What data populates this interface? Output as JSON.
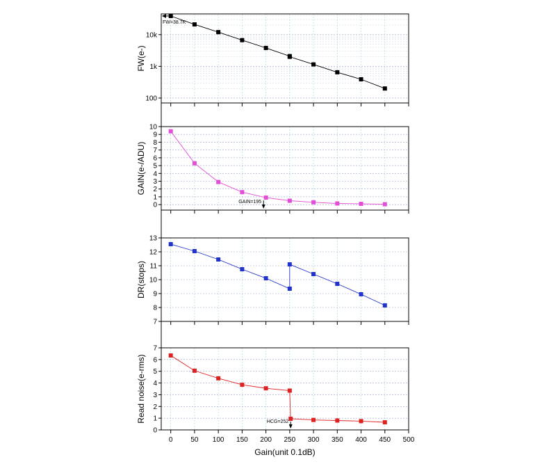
{
  "chart_data": [
    {
      "id": "fw",
      "type": "line",
      "ylabel": "FW(e-)",
      "yscale": "log",
      "ylim": [
        70,
        45000
      ],
      "yticks": [
        100,
        1000,
        10000
      ],
      "ytick_labels": [
        "100",
        "1k",
        "10k"
      ],
      "xlim": [
        -20,
        500
      ],
      "grid": true,
      "color": "#000000",
      "x": [
        0,
        50,
        100,
        150,
        200,
        250,
        250,
        300,
        350,
        400,
        450
      ],
      "values": [
        38700,
        21000,
        12000,
        6700,
        3800,
        2100,
        2000,
        1150,
        650,
        390,
        200
      ],
      "annotations": [
        {
          "text": "FW=38.7K",
          "x": 0,
          "y": 38700,
          "arrow": "left"
        }
      ]
    },
    {
      "id": "gain",
      "type": "line",
      "ylabel": "GAIN(e-/ADU)",
      "yscale": "linear",
      "ylim": [
        -0.7,
        10
      ],
      "yticks": [
        0,
        1,
        2,
        3,
        4,
        5,
        6,
        7,
        8,
        9,
        10
      ],
      "xlim": [
        -20,
        500
      ],
      "grid": true,
      "color": "#e14fd6",
      "x": [
        0,
        50,
        100,
        150,
        200,
        250,
        300,
        350,
        400,
        450
      ],
      "values": [
        9.4,
        5.3,
        2.9,
        1.6,
        0.9,
        0.5,
        0.3,
        0.15,
        0.1,
        0.05
      ],
      "annotations": [
        {
          "text": "GAIN=195",
          "x": 195,
          "y": 0.9,
          "arrow": "down"
        }
      ]
    },
    {
      "id": "dr",
      "type": "line",
      "ylabel": "DR(stops)",
      "yscale": "linear",
      "ylim": [
        7,
        13
      ],
      "yticks": [
        7,
        8,
        9,
        10,
        11,
        12,
        13
      ],
      "xlim": [
        -20,
        500
      ],
      "grid": true,
      "color": "#2233cc",
      "x": [
        0,
        50,
        100,
        150,
        200,
        250,
        250,
        300,
        350,
        400,
        450
      ],
      "values": [
        12.55,
        12.05,
        11.45,
        10.75,
        10.1,
        9.35,
        11.1,
        10.4,
        9.7,
        8.95,
        8.15
      ],
      "annotations": []
    },
    {
      "id": "rn",
      "type": "line",
      "ylabel": "Read noise(e-rms)",
      "xlabel": "Gain(unit 0.1dB)",
      "yscale": "linear",
      "ylim": [
        0,
        7
      ],
      "yticks": [
        0,
        1,
        2,
        3,
        4,
        5,
        6,
        7
      ],
      "xlim": [
        -20,
        500
      ],
      "xticks": [
        0,
        50,
        100,
        150,
        200,
        250,
        300,
        350,
        400,
        450,
        500
      ],
      "grid": true,
      "color": "#dd2222",
      "x": [
        0,
        50,
        100,
        150,
        200,
        250,
        252,
        300,
        350,
        400,
        450
      ],
      "values": [
        6.35,
        5.05,
        4.4,
        3.85,
        3.55,
        3.35,
        0.95,
        0.85,
        0.8,
        0.75,
        0.65
      ],
      "annotations": [
        {
          "text": "HCG=252",
          "x": 252,
          "y": 0.95,
          "arrow": "down"
        }
      ]
    }
  ]
}
